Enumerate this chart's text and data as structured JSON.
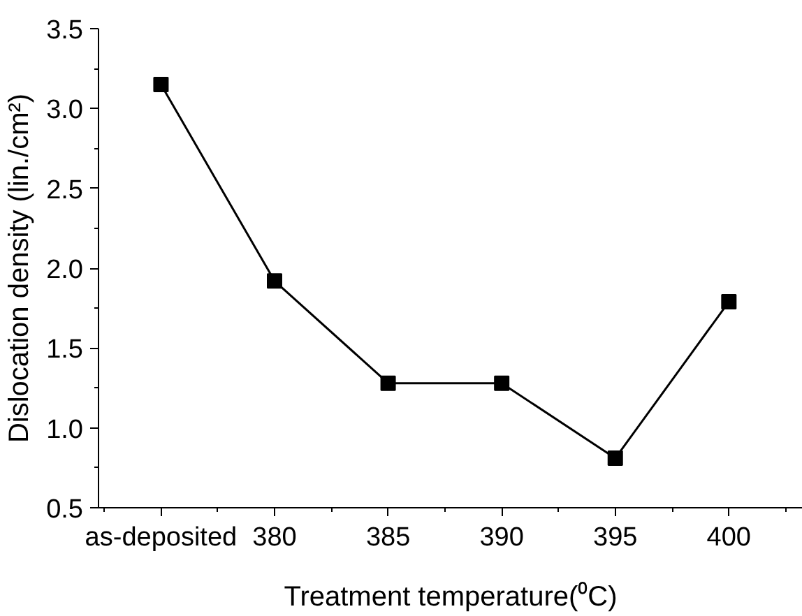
{
  "chart_data": {
    "type": "line",
    "xlabel": "Treatment temperature(⁰C)",
    "ylabel": "Dislocation density (lin./cm²)",
    "categories": [
      "as-deposited",
      "380",
      "385",
      "390",
      "395",
      "400"
    ],
    "series": [
      {
        "color": "#000000",
        "values": [
          3.15,
          1.92,
          1.28,
          1.28,
          0.81,
          1.79
        ]
      }
    ],
    "ylim": [
      0.5,
      3.5
    ],
    "yticks": [
      0.5,
      {
        "value": 1,
        "label": "1.0"
      },
      1.5,
      {
        "value": 2,
        "label": "2.0"
      },
      2.5,
      {
        "value": 3,
        "label": "3.0"
      },
      3.5
    ],
    "marker": "square",
    "line_style": "solid",
    "grid": false
  }
}
